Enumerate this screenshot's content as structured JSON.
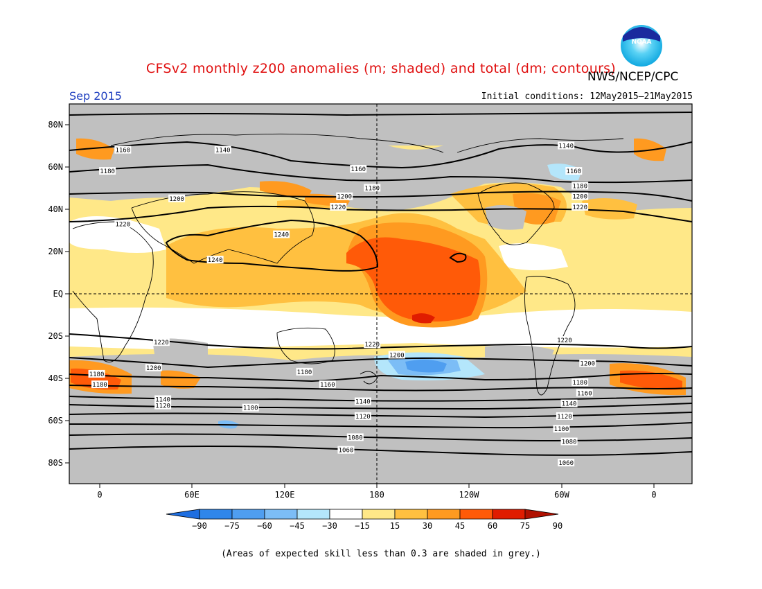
{
  "title": "CFSv2 monthly z200 anomalies (m; shaded) and total (dm; contours)",
  "agency": "NWS/NCEP/CPC",
  "period": "Sep 2015",
  "initial_conditions": "Initial conditions: 12May2015–21May2015",
  "footnote": "(Areas of expected skill less than 0.3 are shaded in grey.)",
  "logo_icon": "noaa-logo-icon",
  "lat_labels": [
    "80N",
    "60N",
    "40N",
    "20N",
    "EQ",
    "20S",
    "40S",
    "60S",
    "80S"
  ],
  "lon_labels": [
    "0",
    "60E",
    "120E",
    "180",
    "120W",
    "60W",
    "0"
  ],
  "colorbar": {
    "labels": [
      "−90",
      "−75",
      "−60",
      "−45",
      "−30",
      "−15",
      "15",
      "30",
      "45",
      "60",
      "75",
      "90"
    ],
    "colors": [
      "#1e6ee0",
      "#2f86ea",
      "#4f9ef0",
      "#7cbdf6",
      "#b4e6fb",
      "#ffffff",
      "#ffe888",
      "#ffc040",
      "#ff9a20",
      "#ff5a08",
      "#e01c00",
      "#b01000"
    ]
  },
  "colors": {
    "skill_grey": "#c0c0c0",
    "title_red": "#e01010",
    "period_blue": "#2040c0"
  },
  "contour_labels": [
    {
      "text": "1160",
      "lon": 15,
      "lat": 68
    },
    {
      "text": "1140",
      "lon": 80,
      "lat": 68
    },
    {
      "text": "1140",
      "lon": -57,
      "lat": 70
    },
    {
      "text": "1180",
      "lon": 5,
      "lat": 58
    },
    {
      "text": "1160",
      "lon": 168,
      "lat": 59
    },
    {
      "text": "1160",
      "lon": -52,
      "lat": 58
    },
    {
      "text": "1180",
      "lon": 177,
      "lat": 50
    },
    {
      "text": "1180",
      "lon": -48,
      "lat": 51
    },
    {
      "text": "1200",
      "lon": 50,
      "lat": 45
    },
    {
      "text": "1200",
      "lon": 159,
      "lat": 46
    },
    {
      "text": "1200",
      "lon": -48,
      "lat": 46
    },
    {
      "text": "1220",
      "lon": 155,
      "lat": 41
    },
    {
      "text": "1220",
      "lon": -48,
      "lat": 41
    },
    {
      "text": "1220",
      "lon": 15,
      "lat": 33
    },
    {
      "text": "1240",
      "lon": 118,
      "lat": 28
    },
    {
      "text": "1240",
      "lon": 75,
      "lat": 16
    },
    {
      "text": "1220",
      "lon": 40,
      "lat": -23
    },
    {
      "text": "1220",
      "lon": 177,
      "lat": -24
    },
    {
      "text": "1220",
      "lon": -58,
      "lat": -22
    },
    {
      "text": "1200",
      "lon": -43,
      "lat": -33
    },
    {
      "text": "1200",
      "lon": 35,
      "lat": -35
    },
    {
      "text": "1200",
      "lon": -167,
      "lat": -29
    },
    {
      "text": "1180",
      "lon": 133,
      "lat": -37
    },
    {
      "text": "1180",
      "lon": -2,
      "lat": -38
    },
    {
      "text": "1180",
      "lon": 0,
      "lat": -43
    },
    {
      "text": "1180",
      "lon": -48,
      "lat": -42
    },
    {
      "text": "1160",
      "lon": 148,
      "lat": -43
    },
    {
      "text": "1160",
      "lon": -45,
      "lat": -47
    },
    {
      "text": "1140",
      "lon": 41,
      "lat": -50
    },
    {
      "text": "1120",
      "lon": 41,
      "lat": -53
    },
    {
      "text": "1140",
      "lon": 171,
      "lat": -51
    },
    {
      "text": "1140",
      "lon": -55,
      "lat": -52
    },
    {
      "text": "1100",
      "lon": 98,
      "lat": -54
    },
    {
      "text": "1120",
      "lon": 171,
      "lat": -58
    },
    {
      "text": "1120",
      "lon": -58,
      "lat": -58
    },
    {
      "text": "1100",
      "lon": -60,
      "lat": -64
    },
    {
      "text": "1080",
      "lon": 166,
      "lat": -68
    },
    {
      "text": "1080",
      "lon": -55,
      "lat": -70
    },
    {
      "text": "1060",
      "lon": 160,
      "lat": -74
    },
    {
      "text": "1060",
      "lon": -57,
      "lat": -80
    }
  ]
}
